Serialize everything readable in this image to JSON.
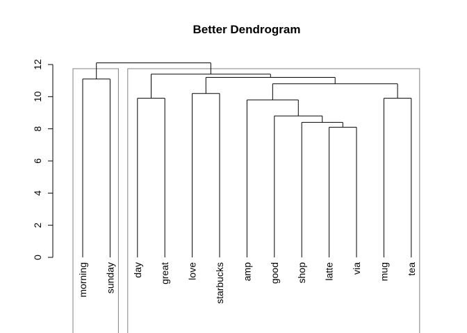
{
  "chart_data": {
    "type": "dendrogram",
    "title": "Better Dendrogram",
    "xlabel": "",
    "ylabel": "",
    "ylim": [
      0,
      12
    ],
    "yticks": [
      0,
      2,
      4,
      6,
      8,
      10,
      12
    ],
    "leaves": [
      "morning",
      "sunday",
      "day",
      "great",
      "love",
      "starbucks",
      "amp",
      "good",
      "shop",
      "latte",
      "via",
      "mug",
      "tea"
    ],
    "merges": [
      {
        "left": "latte",
        "right": "via",
        "height": 8.1
      },
      {
        "left": "shop",
        "right": "latte+via",
        "height": 8.4
      },
      {
        "left": "good",
        "right": "shop+latte+via",
        "height": 8.8
      },
      {
        "left": "amp",
        "right": "good+shop+latte+via",
        "height": 9.8
      },
      {
        "left": "mug",
        "right": "tea",
        "height": 9.9
      },
      {
        "left": "day",
        "right": "great",
        "height": 9.9
      },
      {
        "left": "amp..via",
        "right": "mug+tea",
        "height": 10.8
      },
      {
        "left": "morning",
        "right": "sunday",
        "height": 11.1
      },
      {
        "left": "love",
        "right": "starbucks",
        "height": 10.2
      },
      {
        "left": "love+starbucks",
        "right": "amp..tea",
        "height": 11.2
      },
      {
        "left": "day+great",
        "right": "love..tea",
        "height": 11.4
      },
      {
        "left": "morning+sunday",
        "right": "day..tea",
        "height": 12.1
      }
    ],
    "cluster_boxes": [
      {
        "members": [
          "morning",
          "sunday"
        ]
      },
      {
        "members": [
          "day",
          "great",
          "love",
          "starbucks",
          "amp",
          "good",
          "shop",
          "latte",
          "via",
          "mug",
          "tea"
        ]
      }
    ],
    "grid": false
  }
}
